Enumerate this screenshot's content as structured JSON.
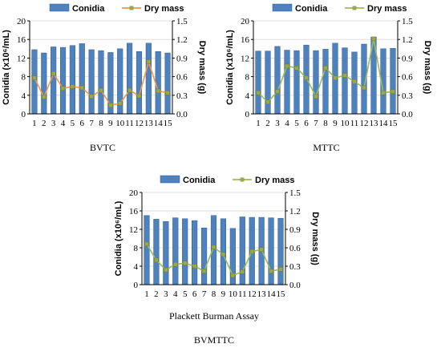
{
  "colors": {
    "conidia": "#4f81bd",
    "conidia_edge": "#2f5f96",
    "dry_mass": "#9bbb59",
    "dry_mass_marker": "#9aa84a",
    "bvtc_line": "#f79646"
  },
  "chart_data": [
    {
      "id": "bvtc",
      "type": "bar",
      "caption": "BVTC",
      "xlabel": "",
      "ylabel_left": "Conidia (x10⁶/mL)",
      "ylabel_right": "Dry mass (g)",
      "categories": [
        "1",
        "2",
        "3",
        "4",
        "5",
        "6",
        "7",
        "8",
        "9",
        "10",
        "11",
        "12",
        "13",
        "14",
        "15"
      ],
      "ylim_left": [
        0,
        20
      ],
      "yticks_left": [
        "0",
        "4",
        "8",
        "12",
        "16",
        "20"
      ],
      "ylim_right": [
        0,
        1.5
      ],
      "yticks_right": [
        "0.0",
        "0.3",
        "0.6",
        "0.9",
        "1.2",
        "1.5"
      ],
      "series": [
        {
          "name": "Conidia",
          "axis": "left",
          "kind": "bar",
          "values": [
            13.8,
            13.1,
            14.4,
            14.3,
            14.7,
            15.1,
            13.8,
            13.6,
            13.2,
            14.0,
            15.2,
            13.4,
            15.2,
            13.4,
            13.1
          ]
        },
        {
          "name": "Dry mass",
          "axis": "right",
          "kind": "line",
          "values": [
            0.58,
            0.27,
            0.65,
            0.41,
            0.44,
            0.42,
            0.28,
            0.38,
            0.14,
            0.17,
            0.38,
            0.29,
            0.84,
            0.37,
            0.34
          ]
        }
      ],
      "legend": "top-left"
    },
    {
      "id": "mttc",
      "type": "bar",
      "caption": "MTTC",
      "xlabel": "",
      "ylabel_left": "Conidia (x10⁶/mL)",
      "ylabel_right": "Dry mass (g)",
      "categories": [
        "1",
        "2",
        "3",
        "4",
        "5",
        "6",
        "7",
        "8",
        "9",
        "10",
        "11",
        "12",
        "13",
        "14",
        "15"
      ],
      "ylim_left": [
        0,
        20
      ],
      "yticks_left": [
        "0",
        "4",
        "8",
        "12",
        "16",
        "20"
      ],
      "ylim_right": [
        0,
        1.5
      ],
      "yticks_right": [
        "0.0",
        "0.3",
        "0.6",
        "0.9",
        "1.2",
        "1.5"
      ],
      "series": [
        {
          "name": "Conidia",
          "axis": "left",
          "kind": "bar",
          "values": [
            13.5,
            13.5,
            14.5,
            13.7,
            13.6,
            14.8,
            13.6,
            13.9,
            15.2,
            14.2,
            13.3,
            15.0,
            16.5,
            14.0,
            14.1
          ]
        },
        {
          "name": "Dry mass",
          "axis": "right",
          "kind": "line",
          "values": [
            0.34,
            0.19,
            0.36,
            0.77,
            0.74,
            0.58,
            0.28,
            0.74,
            0.58,
            0.62,
            0.52,
            0.42,
            1.21,
            0.34,
            0.36
          ]
        }
      ],
      "legend": "top-left"
    },
    {
      "id": "bvmttc",
      "type": "bar",
      "caption": "BVMTTC",
      "xlabel": "Plackett Burman Assay",
      "ylabel_left": "Conidia (x10⁶/mL)",
      "ylabel_right": "Dry mass (g)",
      "categories": [
        "1",
        "2",
        "3",
        "4",
        "5",
        "6",
        "7",
        "8",
        "9",
        "10",
        "11",
        "12",
        "13",
        "14",
        "15"
      ],
      "ylim_left": [
        0,
        20
      ],
      "yticks_left": [
        "0",
        "4",
        "8",
        "12",
        "16",
        "20"
      ],
      "ylim_right": [
        0,
        1.5
      ],
      "yticks_right": [
        "0.0",
        "0.3",
        "0.6",
        "0.9",
        "1.2",
        "1.5"
      ],
      "series": [
        {
          "name": "Conidia",
          "axis": "left",
          "kind": "bar",
          "values": [
            15.0,
            14.2,
            13.7,
            14.5,
            14.3,
            13.9,
            12.3,
            15.0,
            14.3,
            12.2,
            14.7,
            14.6,
            14.6,
            14.5,
            14.4
          ]
        },
        {
          "name": "Dry mass",
          "axis": "right",
          "kind": "line",
          "values": [
            0.66,
            0.4,
            0.24,
            0.33,
            0.35,
            0.3,
            0.22,
            0.61,
            0.49,
            0.15,
            0.21,
            0.54,
            0.57,
            0.22,
            0.25
          ]
        }
      ],
      "legend": "top-left"
    }
  ]
}
